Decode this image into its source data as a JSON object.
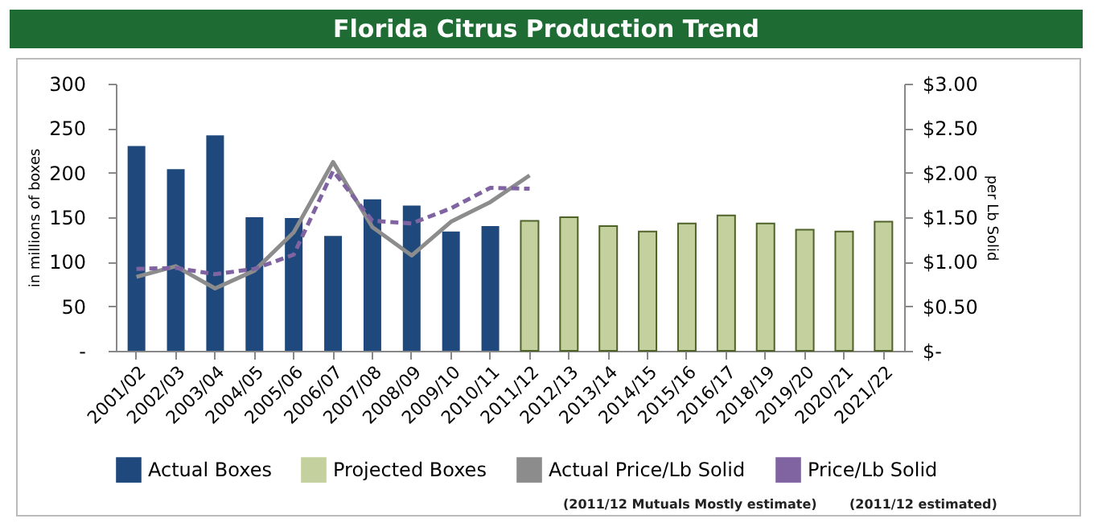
{
  "chart_data": {
    "type": "bar",
    "title": "Florida Citrus Production Trend",
    "ylabel": "in millions of boxes",
    "y2label": "per Lb Solid",
    "categories": [
      "2001/02",
      "2002/03",
      "2003/04",
      "2004/05",
      "2005/06",
      "2006/07",
      "2007/08",
      "2008/09",
      "2009/10",
      "2010/11",
      "2011/12",
      "2012/13",
      "2013/14",
      "2014/15",
      "2015/16",
      "2016/17",
      "2018/19",
      "2019/20",
      "2020/21",
      "2021/22"
    ],
    "series": [
      {
        "name": "Actual Boxes",
        "color": "#1f497d",
        "values": [
          230,
          204,
          242,
          150,
          149,
          129,
          170,
          163,
          134,
          140,
          null,
          null,
          null,
          null,
          null,
          null,
          null,
          null,
          null,
          null
        ]
      },
      {
        "name": "Projected Boxes",
        "color": "#c4d19e",
        "values": [
          null,
          null,
          null,
          null,
          null,
          null,
          null,
          null,
          null,
          null,
          146,
          150,
          140,
          134,
          143,
          152,
          143,
          136,
          134,
          145
        ]
      },
      {
        "name": "Actual Price/Lb Solid",
        "type": "line",
        "axis": "y2",
        "color": "#8c8c8c",
        "line_style": "solid",
        "values": [
          0.83,
          0.95,
          0.7,
          0.9,
          1.33,
          2.12,
          1.39,
          1.07,
          1.45,
          1.67,
          1.97,
          null,
          null,
          null,
          null,
          null,
          null,
          null,
          null,
          null
        ]
      },
      {
        "name": "Price/Lb Solid",
        "type": "line",
        "axis": "y2",
        "color": "#8064a2",
        "line_style": "dashed",
        "values": [
          0.92,
          0.93,
          0.86,
          0.92,
          1.08,
          2.02,
          1.46,
          1.43,
          1.6,
          1.83,
          1.82,
          null,
          null,
          null,
          null,
          null,
          null,
          null,
          null,
          null
        ]
      }
    ],
    "ylim": [
      0,
      300
    ],
    "yticks": [
      {
        "value": 0,
        "label": "-"
      },
      50,
      100,
      150,
      200,
      250,
      300
    ],
    "y2lim": [
      0,
      3
    ],
    "y2ticks": [
      {
        "value": 0,
        "label": "$-"
      },
      {
        "value": 0.5,
        "label": "$0.50"
      },
      {
        "value": 1,
        "label": "$1.00"
      },
      {
        "value": 1.5,
        "label": "$1.50"
      },
      {
        "value": 2,
        "label": "$2.00"
      },
      {
        "value": 2.5,
        "label": "$2.50"
      },
      {
        "value": 3,
        "label": "$3.00"
      }
    ],
    "grid": false,
    "legend": "bottom",
    "marker": "none",
    "annotations": [
      "(2011/12 Mutuals Mostly estimate)",
      "(2011/12 estimated)"
    ]
  }
}
